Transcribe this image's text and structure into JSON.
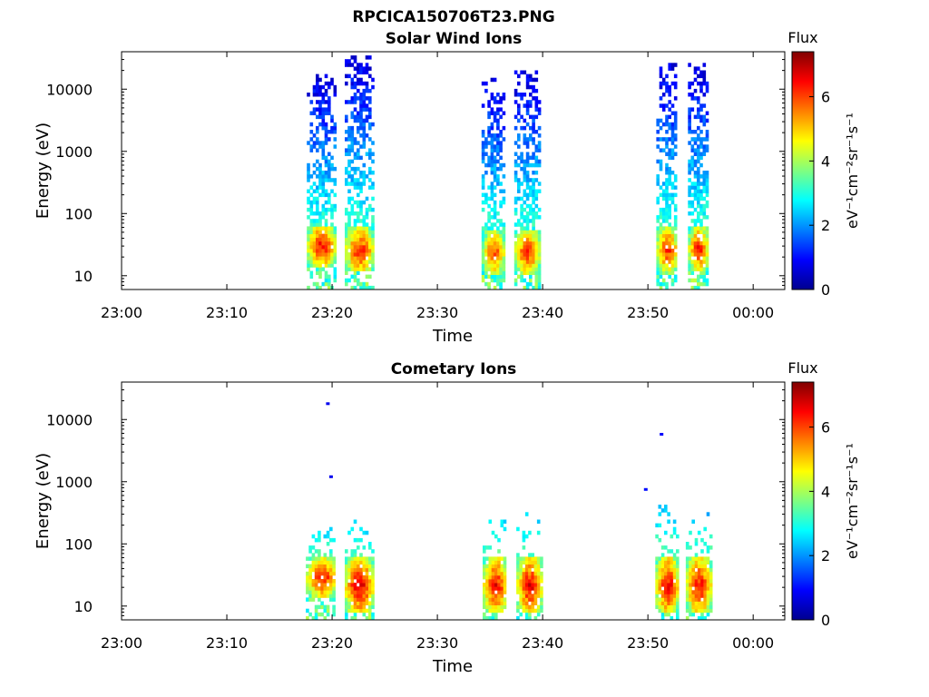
{
  "figure_title": "RPCICA150706T23.PNG",
  "chart_data": [
    {
      "type": "heatmap",
      "title": "Solar Wind Ions",
      "xlabel": "Time",
      "ylabel": "Energy (eV)",
      "x_ticks": [
        "23:00",
        "23:10",
        "23:20",
        "23:30",
        "23:40",
        "23:50",
        "00:00"
      ],
      "xlim_minutes": [
        0,
        63
      ],
      "y_scale": "log",
      "ylim": [
        6,
        40000
      ],
      "y_ticks": [
        10,
        100,
        1000,
        10000
      ],
      "y_tick_labels": [
        "10",
        "100",
        "1000",
        "10000"
      ],
      "colorbar": {
        "title": "Flux",
        "label": "eV⁻¹cm⁻²sr⁻¹s⁻¹",
        "range": [
          0,
          7.4
        ],
        "ticks": [
          0,
          2,
          4,
          6
        ]
      },
      "bursts": [
        {
          "name": "b1",
          "start_min": 17.6,
          "end_min": 20.2,
          "peak_flux": 6.9,
          "core_energy": [
            18,
            50
          ],
          "max_energy": 15000
        },
        {
          "name": "b2",
          "start_min": 21.2,
          "end_min": 23.8,
          "peak_flux": 6.8,
          "core_energy": [
            15,
            45
          ],
          "max_energy": 32000
        },
        {
          "name": "b3",
          "start_min": 34.2,
          "end_min": 36.3,
          "peak_flux": 6.5,
          "core_energy": [
            14,
            40
          ],
          "max_energy": 14000
        },
        {
          "name": "b4",
          "start_min": 37.3,
          "end_min": 39.6,
          "peak_flux": 6.7,
          "core_energy": [
            14,
            40
          ],
          "max_energy": 19000
        },
        {
          "name": "b5",
          "start_min": 50.8,
          "end_min": 52.7,
          "peak_flux": 6.7,
          "core_energy": [
            15,
            45
          ],
          "max_energy": 25000
        },
        {
          "name": "b6",
          "start_min": 53.8,
          "end_min": 55.6,
          "peak_flux": 6.8,
          "core_energy": [
            16,
            45
          ],
          "max_energy": 23000
        }
      ]
    },
    {
      "type": "heatmap",
      "title": "Cometary Ions",
      "xlabel": "Time",
      "ylabel": "Energy (eV)",
      "x_ticks": [
        "23:00",
        "23:10",
        "23:20",
        "23:30",
        "23:40",
        "23:50",
        "00:00"
      ],
      "xlim_minutes": [
        0,
        63
      ],
      "y_scale": "log",
      "ylim": [
        6,
        40000
      ],
      "y_ticks": [
        10,
        100,
        1000,
        10000
      ],
      "y_tick_labels": [
        "10",
        "100",
        "1000",
        "10000"
      ],
      "colorbar": {
        "title": "Flux",
        "label": "eV⁻¹cm⁻²sr⁻¹s⁻¹",
        "range": [
          0,
          7.4
        ],
        "ticks": [
          0,
          2,
          4,
          6
        ]
      },
      "bursts": [
        {
          "name": "c1",
          "start_min": 17.5,
          "end_min": 20.3,
          "peak_flux": 6.8,
          "core_energy": [
            18,
            45
          ],
          "max_energy": 200
        },
        {
          "name": "c2",
          "start_min": 21.2,
          "end_min": 23.8,
          "peak_flux": 7.2,
          "core_energy": [
            10,
            45
          ],
          "max_energy": 210
        },
        {
          "name": "c3",
          "start_min": 34.3,
          "end_min": 36.5,
          "peak_flux": 7.0,
          "core_energy": [
            10,
            45
          ],
          "max_energy": 350
        },
        {
          "name": "c4",
          "start_min": 37.5,
          "end_min": 39.8,
          "peak_flux": 7.1,
          "core_energy": [
            10,
            45
          ],
          "max_energy": 300
        },
        {
          "name": "c5",
          "start_min": 50.7,
          "end_min": 52.8,
          "peak_flux": 7.1,
          "core_energy": [
            10,
            45
          ],
          "max_energy": 380
        },
        {
          "name": "c6",
          "start_min": 53.6,
          "end_min": 55.9,
          "peak_flux": 7.0,
          "core_energy": [
            10,
            45
          ],
          "max_energy": 300
        }
      ],
      "isolated_points": [
        {
          "time_min": 19.6,
          "energy": 18000,
          "flux": 0.8
        },
        {
          "time_min": 19.9,
          "energy": 1200,
          "flux": 0.8
        },
        {
          "time_min": 49.8,
          "energy": 750,
          "flux": 1.0
        },
        {
          "time_min": 51.3,
          "energy": 5800,
          "flux": 0.9
        }
      ]
    }
  ]
}
